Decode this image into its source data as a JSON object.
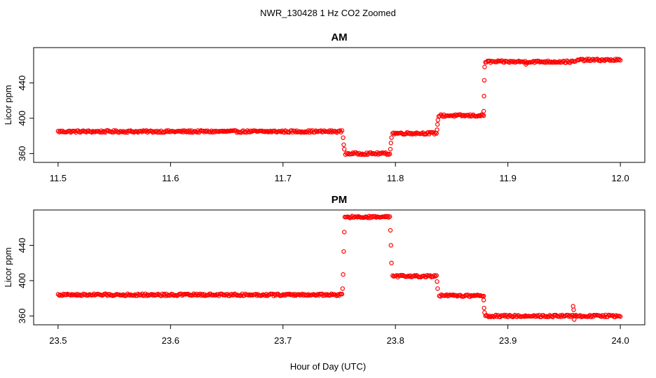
{
  "figure": {
    "suptitle": "NWR_130428  1 Hz CO2 Zoomed",
    "shared_xlabel": "Hour of Day (UTC)"
  },
  "chart_data": [
    {
      "type": "scatter",
      "title": "AM",
      "ylabel": "Licor ppm",
      "xlim": [
        11.5,
        12.0
      ],
      "ylim": [
        350,
        480
      ],
      "xticks": [
        "11.5",
        "11.6",
        "11.7",
        "11.8",
        "11.9",
        "12.0"
      ],
      "yticks": [
        "360",
        "400",
        "440"
      ],
      "marker": "open-circle",
      "color": "#ff0000",
      "segments": [
        {
          "x": [
            11.5,
            11.7525
          ],
          "y": 385
        },
        {
          "x": [
            11.7555,
            11.795
          ],
          "y": 360
        },
        {
          "x": [
            11.7975,
            11.8365
          ],
          "y": 383
        },
        {
          "x": [
            11.8385,
            11.8785
          ],
          "y": 403
        },
        {
          "x": [
            11.88,
            11.96
          ],
          "y": 464
        },
        {
          "x": [
            11.962,
            12.0
          ],
          "y": 466
        }
      ],
      "transition_points": [
        {
          "x": 11.7535,
          "y": 378
        },
        {
          "x": 11.754,
          "y": 370
        },
        {
          "x": 11.7545,
          "y": 365
        },
        {
          "x": 11.7955,
          "y": 365
        },
        {
          "x": 11.796,
          "y": 372
        },
        {
          "x": 11.7965,
          "y": 378
        },
        {
          "x": 11.837,
          "y": 387
        },
        {
          "x": 11.8374,
          "y": 393
        },
        {
          "x": 11.8378,
          "y": 398
        },
        {
          "x": 11.8785,
          "y": 408
        },
        {
          "x": 11.8788,
          "y": 425
        },
        {
          "x": 11.879,
          "y": 443
        },
        {
          "x": 11.8793,
          "y": 458
        },
        {
          "x": 11.916,
          "y": 461
        }
      ]
    },
    {
      "type": "scatter",
      "title": "PM",
      "ylabel": "Licor ppm",
      "xlim": [
        23.5,
        24.0
      ],
      "ylim": [
        350,
        480
      ],
      "xticks": [
        "23.5",
        "23.6",
        "23.7",
        "23.8",
        "23.9",
        "24.0"
      ],
      "yticks": [
        "360",
        "400",
        "440"
      ],
      "marker": "open-circle",
      "color": "#ff0000",
      "segments": [
        {
          "x": [
            23.5,
            23.7525
          ],
          "y": 384
        },
        {
          "x": [
            23.755,
            23.795
          ],
          "y": 472
        },
        {
          "x": [
            23.7975,
            23.8365
          ],
          "y": 405
        },
        {
          "x": [
            23.839,
            23.8785
          ],
          "y": 383
        },
        {
          "x": [
            23.88,
            24.0
          ],
          "y": 360
        }
      ],
      "transition_points": [
        {
          "x": 23.753,
          "y": 391
        },
        {
          "x": 23.7535,
          "y": 407
        },
        {
          "x": 23.754,
          "y": 433
        },
        {
          "x": 23.7545,
          "y": 455
        },
        {
          "x": 23.7955,
          "y": 457
        },
        {
          "x": 23.796,
          "y": 440
        },
        {
          "x": 23.7965,
          "y": 420
        },
        {
          "x": 23.837,
          "y": 399
        },
        {
          "x": 23.8375,
          "y": 391
        },
        {
          "x": 23.8785,
          "y": 378
        },
        {
          "x": 23.8788,
          "y": 369
        },
        {
          "x": 23.8792,
          "y": 364
        },
        {
          "x": 23.958,
          "y": 371
        },
        {
          "x": 23.9585,
          "y": 367
        },
        {
          "x": 23.959,
          "y": 356
        }
      ]
    }
  ]
}
